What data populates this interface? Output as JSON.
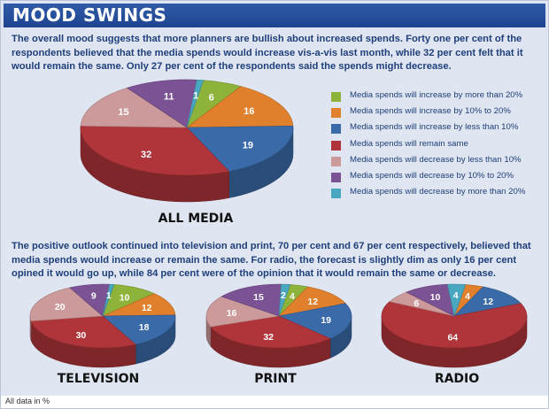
{
  "header": {
    "title": "MOOD SWINGS"
  },
  "intro_text": "The overall mood suggests that more planners are bullish about increased spends. Forty one per cent of the respondents believed that the media spends would increase vis-a-vis last month, while 32 per cent felt that it would remain the same. Only 27 per cent of the respondents said the spends might decrease.",
  "outlook_text": "The positive outlook continued into  television and print, 70 per cent and 67 per cent respectively, believed that media spends would increase or remain the same. For radio, the forecast is slightly dim as only 16 per cent opined it would go up, while 84 per cent were of the opinion that it would remain the same or decrease.",
  "footnote": "All data in %",
  "legend": [
    {
      "label": "Media spends will increase by more than 20%",
      "color": "#8db33a"
    },
    {
      "label": "Media spends will increase by 10% to 20%",
      "color": "#e07f2c"
    },
    {
      "label": "Media spends will increase by less than 10%",
      "color": "#3a6aa8"
    },
    {
      "label": "Media spends will remain same",
      "color": "#b0353a"
    },
    {
      "label": "Media spends will decrease by less than 10%",
      "color": "#cc9a9a"
    },
    {
      "label": "Media spends will decrease by 10% to 20%",
      "color": "#7b5394"
    },
    {
      "label": "Media spends will decrease by more than 20%",
      "color": "#4aa7c0"
    }
  ],
  "chart_data": [
    {
      "type": "pie",
      "title": "ALL MEDIA",
      "categories": [
        "Media spends will increase by more than 20%",
        "Media spends will increase by 10% to 20%",
        "Media spends will increase by less than 10%",
        "Media spends will remain same",
        "Media spends will decrease by less than 10%",
        "Media spends will decrease by 10% to 20%",
        "Media spends will decrease by more than 20%"
      ],
      "values": [
        6,
        16,
        19,
        32,
        15,
        11,
        1
      ]
    },
    {
      "type": "pie",
      "title": "TELEVISION",
      "categories": [
        "Media spends will increase by more than 20%",
        "Media spends will increase by 10% to 20%",
        "Media spends will increase by less than 10%",
        "Media spends will remain same",
        "Media spends will decrease by less than 10%",
        "Media spends will decrease by 10% to 20%",
        "Media spends will decrease by more than 20%"
      ],
      "values": [
        10,
        12,
        18,
        30,
        20,
        9,
        1
      ]
    },
    {
      "type": "pie",
      "title": "PRINT",
      "categories": [
        "Media spends will increase by more than 20%",
        "Media spends will increase by 10% to 20%",
        "Media spends will increase by less than 10%",
        "Media spends will remain same",
        "Media spends will decrease by less than 10%",
        "Media spends will decrease by 10% to 20%",
        "Media spends will decrease by more than 20%"
      ],
      "values": [
        4,
        12,
        19,
        32,
        16,
        15,
        2
      ]
    },
    {
      "type": "pie",
      "title": "RADIO",
      "categories": [
        "Media spends will increase by more than 20%",
        "Media spends will increase by 10% to 20%",
        "Media spends will increase by less than 10%",
        "Media spends will remain same",
        "Media spends will decrease by less than 10%",
        "Media spends will decrease by 10% to 20%",
        "Media spends will decrease by more than 20%"
      ],
      "values": [
        0,
        4,
        12,
        64,
        6,
        10,
        4
      ]
    }
  ]
}
